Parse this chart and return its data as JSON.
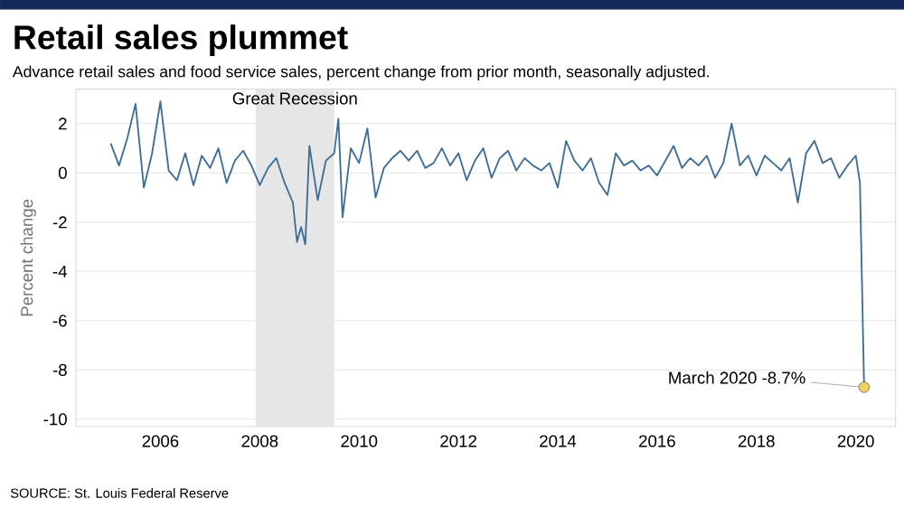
{
  "chart_data": {
    "type": "line",
    "title": "Retail sales plummet",
    "subtitle": "Advance retail sales and food service sales, percent change from prior month, seasonally adjusted.",
    "ylabel": "Percent change",
    "x": [
      2005.0,
      2005.167,
      2005.333,
      2005.5,
      2005.667,
      2005.833,
      2006.0,
      2006.167,
      2006.333,
      2006.5,
      2006.667,
      2006.833,
      2007.0,
      2007.167,
      2007.333,
      2007.5,
      2007.667,
      2007.833,
      2008.0,
      2008.167,
      2008.333,
      2008.5,
      2008.667,
      2008.75,
      2008.833,
      2008.917,
      2009.0,
      2009.167,
      2009.333,
      2009.5,
      2009.583,
      2009.667,
      2009.833,
      2010.0,
      2010.167,
      2010.333,
      2010.5,
      2010.667,
      2010.833,
      2011.0,
      2011.167,
      2011.333,
      2011.5,
      2011.667,
      2011.833,
      2012.0,
      2012.167,
      2012.333,
      2012.5,
      2012.667,
      2012.833,
      2013.0,
      2013.167,
      2013.333,
      2013.5,
      2013.667,
      2013.833,
      2014.0,
      2014.167,
      2014.333,
      2014.5,
      2014.667,
      2014.833,
      2015.0,
      2015.167,
      2015.333,
      2015.5,
      2015.667,
      2015.833,
      2016.0,
      2016.167,
      2016.333,
      2016.5,
      2016.667,
      2016.833,
      2017.0,
      2017.167,
      2017.333,
      2017.5,
      2017.667,
      2017.833,
      2018.0,
      2018.167,
      2018.333,
      2018.5,
      2018.667,
      2018.833,
      2019.0,
      2019.167,
      2019.333,
      2019.5,
      2019.667,
      2019.833,
      2020.0,
      2020.083,
      2020.167
    ],
    "series": [
      {
        "color": "#3f6e96",
        "values": [
          1.2,
          0.3,
          1.4,
          2.8,
          -0.6,
          0.8,
          2.9,
          0.1,
          -0.3,
          0.8,
          -0.5,
          0.7,
          0.2,
          1.0,
          -0.4,
          0.5,
          0.9,
          0.3,
          -0.5,
          0.2,
          0.6,
          -0.4,
          -1.2,
          -2.8,
          -2.2,
          -2.9,
          1.1,
          -1.1,
          0.5,
          0.8,
          2.2,
          -1.8,
          1.0,
          0.4,
          1.8,
          -1.0,
          0.2,
          0.6,
          0.9,
          0.5,
          0.9,
          0.2,
          0.4,
          1.0,
          0.3,
          0.8,
          -0.3,
          0.5,
          1.0,
          -0.2,
          0.6,
          0.9,
          0.1,
          0.6,
          0.3,
          0.1,
          0.4,
          -0.6,
          1.3,
          0.5,
          0.1,
          0.6,
          -0.4,
          -0.9,
          0.8,
          0.3,
          0.5,
          0.1,
          0.3,
          -0.1,
          0.5,
          1.1,
          0.2,
          0.6,
          0.3,
          0.7,
          -0.2,
          0.4,
          2.0,
          0.3,
          0.7,
          -0.1,
          0.7,
          0.4,
          0.1,
          0.6,
          -1.2,
          0.8,
          1.3,
          0.4,
          0.6,
          -0.2,
          0.3,
          0.7,
          -0.4,
          -8.7
        ]
      }
    ],
    "xlim": [
      2004.3,
      2020.8
    ],
    "xticks": [
      2006,
      2008,
      2010,
      2012,
      2014,
      2016,
      2018,
      2020
    ],
    "ylim": [
      -10.3,
      3.4
    ],
    "yticks": [
      2,
      0,
      -2,
      -4,
      -6,
      -8,
      -10
    ],
    "grid": "y",
    "line_style": "solid",
    "bands": [
      {
        "axis": "x",
        "from": 2007.92,
        "to": 2009.5,
        "label": "Great Recession",
        "color": "#e6e6e6"
      }
    ],
    "annotations": [
      {
        "text": "March 2020 -8.7%",
        "x": 2020.167,
        "y": -8.7
      },
      "SOURCE: St. Louis Federal Reserve"
    ]
  }
}
